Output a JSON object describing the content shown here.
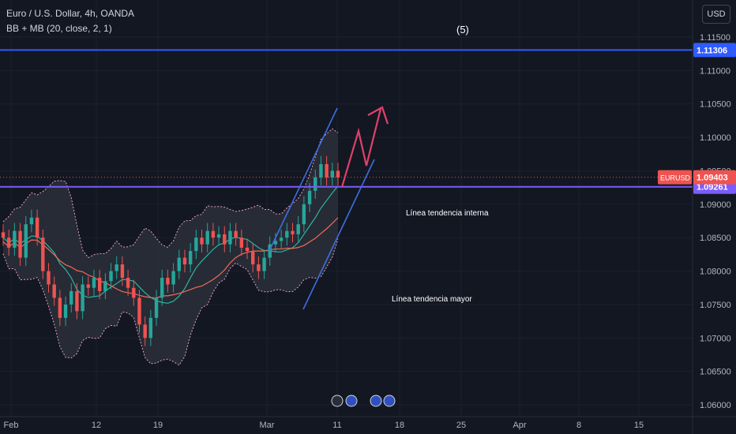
{
  "header": {
    "symbol_title": "Euro / U.S. Dollar, 4h, OANDA",
    "indicator": "BB + MB (20, close, 2, 1)",
    "currency_button": "USD"
  },
  "colors": {
    "background": "#131722",
    "up": "#26a69a",
    "down": "#ef5350",
    "bb_upper": "#e8a0c8",
    "bb_basis": "#2ab5a0",
    "bb_fill": "#2a2e39",
    "ma_line": "#ef6c57",
    "trend_line": "#3d6fe0",
    "hline": "#2f5bff",
    "purple_line": "#7b5cff",
    "arrow": "#e0416b"
  },
  "chart_data": {
    "type": "candlestick",
    "title": "Euro / U.S. Dollar, 4h, OANDA",
    "ylim": [
      1.0595,
      1.1195
    ],
    "price_ticks": [
      "1.11500",
      "1.11000",
      "1.10500",
      "1.10000",
      "1.09500",
      "1.09000",
      "1.08500",
      "1.08000",
      "1.07500",
      "1.07000",
      "1.06500",
      "1.06000"
    ],
    "date_ticks": [
      "Feb",
      "12",
      "19",
      "Mar",
      "11",
      "18",
      "25",
      "Apr",
      "8",
      "15"
    ],
    "last_price": "1.09403",
    "last_price_tag": "EURUSD",
    "horizontal_levels": [
      {
        "value": 1.11306,
        "label": "1.11306"
      },
      {
        "value": 1.09261,
        "label": "1.09261"
      }
    ],
    "annotations": [
      {
        "text": "(5)"
      },
      {
        "text": "Línea tendencia interna"
      },
      {
        "text": "Línea tendencia mayor"
      }
    ],
    "closes": [
      1.085,
      1.0835,
      1.086,
      1.082,
      1.087,
      1.088,
      1.085,
      1.08,
      1.078,
      1.076,
      1.073,
      1.075,
      1.077,
      1.074,
      1.078,
      1.0775,
      1.079,
      1.077,
      1.0785,
      1.08,
      1.081,
      1.079,
      1.0775,
      1.076,
      1.072,
      1.07,
      1.073,
      1.076,
      1.079,
      1.078,
      1.08,
      1.082,
      1.081,
      1.083,
      1.085,
      1.084,
      1.086,
      1.085,
      1.0855,
      1.084,
      1.086,
      1.085,
      1.0835,
      1.083,
      1.081,
      1.08,
      1.082,
      1.084,
      1.0845,
      1.085,
      1.086,
      1.0855,
      1.087,
      1.09,
      1.092,
      1.094,
      1.096,
      1.094,
      1.095,
      1.094
    ]
  }
}
